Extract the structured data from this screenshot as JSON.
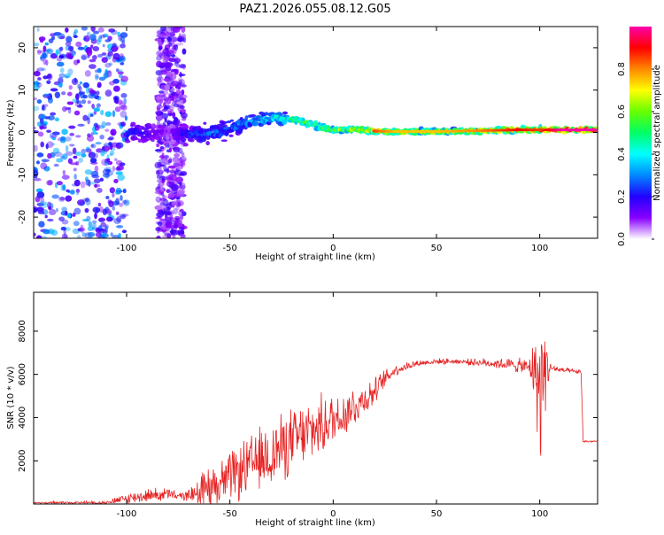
{
  "title": "PAZ1.2026.055.08.12.G05",
  "chart_data": [
    {
      "type": "heatmap",
      "name": "spectrogram",
      "xlabel": "Height of straight line (km)",
      "ylabel": "Frequency (Hz)",
      "xlim": [
        -145,
        128
      ],
      "ylim": [
        -25,
        25
      ],
      "xticks": [
        -100,
        -50,
        0,
        50,
        100
      ],
      "yticks": [
        -20,
        -10,
        0,
        10,
        20
      ],
      "grid": false,
      "colorbar": {
        "label": "Normalized spectral amplitude",
        "range": [
          0,
          1
        ],
        "ticks": [
          0.0,
          0.2,
          0.4,
          0.6,
          0.8
        ],
        "tick_labels": [
          "0.0",
          "0.2",
          "0.4",
          "0.6",
          "0.8"
        ],
        "stops": [
          "#ffffff",
          "#8800ff",
          "#2200ff",
          "#0088ff",
          "#00ffff",
          "#00ff66",
          "#66ff00",
          "#ffff00",
          "#ff8800",
          "#ff0000",
          "#ff00aa"
        ]
      },
      "ridge": {
        "x": [
          -100,
          -90,
          -80,
          -70,
          -60,
          -50,
          -40,
          -30,
          -20,
          -10,
          0,
          10,
          20,
          30,
          50,
          70,
          90,
          100,
          110,
          128
        ],
        "center_hz": [
          0,
          0,
          0,
          -0.5,
          -0.5,
          1.0,
          2.5,
          3.5,
          3.0,
          2.0,
          0.5,
          0.8,
          0.3,
          0.2,
          0.2,
          0.4,
          0.6,
          0.6,
          0.6,
          0.6
        ],
        "spread_hz": [
          3,
          3,
          3,
          3,
          3,
          3,
          2.5,
          2,
          1.5,
          1.2,
          1,
          0.8,
          0.8,
          0.8,
          0.8,
          0.8,
          0.8,
          1,
          0.8,
          0.8
        ],
        "amplitude": [
          0.25,
          0.2,
          0.1,
          0.25,
          0.3,
          0.3,
          0.35,
          0.45,
          0.55,
          0.6,
          0.65,
          0.7,
          0.85,
          0.75,
          0.75,
          0.8,
          0.9,
          0.85,
          1.0,
          1.0
        ]
      },
      "noise_regions": [
        {
          "x_range": [
            -145,
            -100
          ],
          "density": "high",
          "amplitude_range": [
            0.1,
            0.35
          ]
        },
        {
          "x_range": [
            -85,
            -72
          ],
          "density": "high",
          "amplitude_range": [
            0.05,
            0.2
          ]
        }
      ]
    },
    {
      "type": "line",
      "name": "snr",
      "xlabel": "Height of straight line (km)",
      "ylabel": "SNR (10 * v/v)",
      "xlim": [
        -145,
        128
      ],
      "ylim": [
        0,
        9800
      ],
      "xticks": [
        -100,
        -50,
        0,
        50,
        100
      ],
      "yticks": [
        2000,
        4000,
        6000,
        8000
      ],
      "grid": false,
      "color": "#e52222",
      "series": [
        {
          "name": "SNR",
          "x": [
            -145,
            -110,
            -100,
            -90,
            -80,
            -75,
            -70,
            -60,
            -50,
            -40,
            -30,
            -20,
            -10,
            0,
            10,
            20,
            25,
            30,
            40,
            50,
            60,
            70,
            80,
            90,
            95,
            98,
            100,
            102,
            103,
            105,
            110,
            120,
            121,
            128
          ],
          "base": [
            50,
            60,
            250,
            400,
            450,
            350,
            400,
            800,
            1200,
            1800,
            2300,
            2900,
            3400,
            3900,
            4500,
            5200,
            5800,
            6200,
            6500,
            6600,
            6600,
            6550,
            6500,
            6400,
            6300,
            6200,
            5000,
            6300,
            6400,
            6300,
            6200,
            6100,
            2900,
            2900
          ],
          "jitter": [
            80,
            100,
            300,
            350,
            400,
            200,
            300,
            1200,
            1400,
            1600,
            1900,
            1800,
            1700,
            1500,
            1200,
            700,
            500,
            300,
            200,
            150,
            150,
            200,
            300,
            400,
            500,
            2000,
            4500,
            3000,
            2000,
            300,
            150,
            100,
            60,
            60
          ]
        }
      ]
    }
  ]
}
